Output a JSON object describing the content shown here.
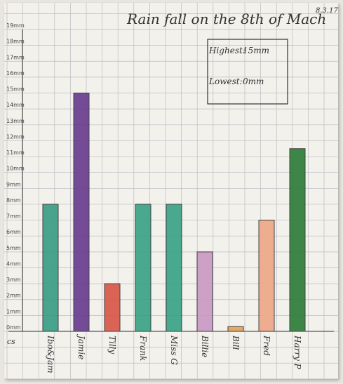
{
  "chart_data": {
    "type": "bar",
    "title": "Rain fall on the 8th of Mach",
    "date": "8.3.17",
    "xlabel": "cs",
    "categories": [
      "Ibo&Jam",
      "Jamie",
      "Tilly",
      "Frank",
      "Miss G",
      "Billie",
      "Bill",
      "Fred",
      "Harry P"
    ],
    "values": [
      8,
      15,
      3,
      8,
      8,
      5,
      0.3,
      7,
      11.5
    ],
    "colors": [
      "#3a9e84",
      "#6a3d8f",
      "#d9584a",
      "#3aa387",
      "#3aa387",
      "#c99ac4",
      "#e3a35a",
      "#efa889",
      "#2f7d3b"
    ],
    "y_ticks": [
      "0mm",
      "1mm",
      "2mm",
      "3mm",
      "4mm",
      "5mm",
      "6mm",
      "7mm",
      "8mm",
      "9mm",
      "10mm",
      "11mm",
      "12mm",
      "13mm",
      "14mm",
      "15mm",
      "16mm",
      "17mm",
      "18mm",
      "19mm"
    ],
    "ylim": [
      0,
      19
    ],
    "grid": true,
    "annotation": {
      "highest_label": "Highest:",
      "highest_value": "15mm",
      "lowest_label": "Lowest:",
      "lowest_value": "0mm"
    }
  }
}
